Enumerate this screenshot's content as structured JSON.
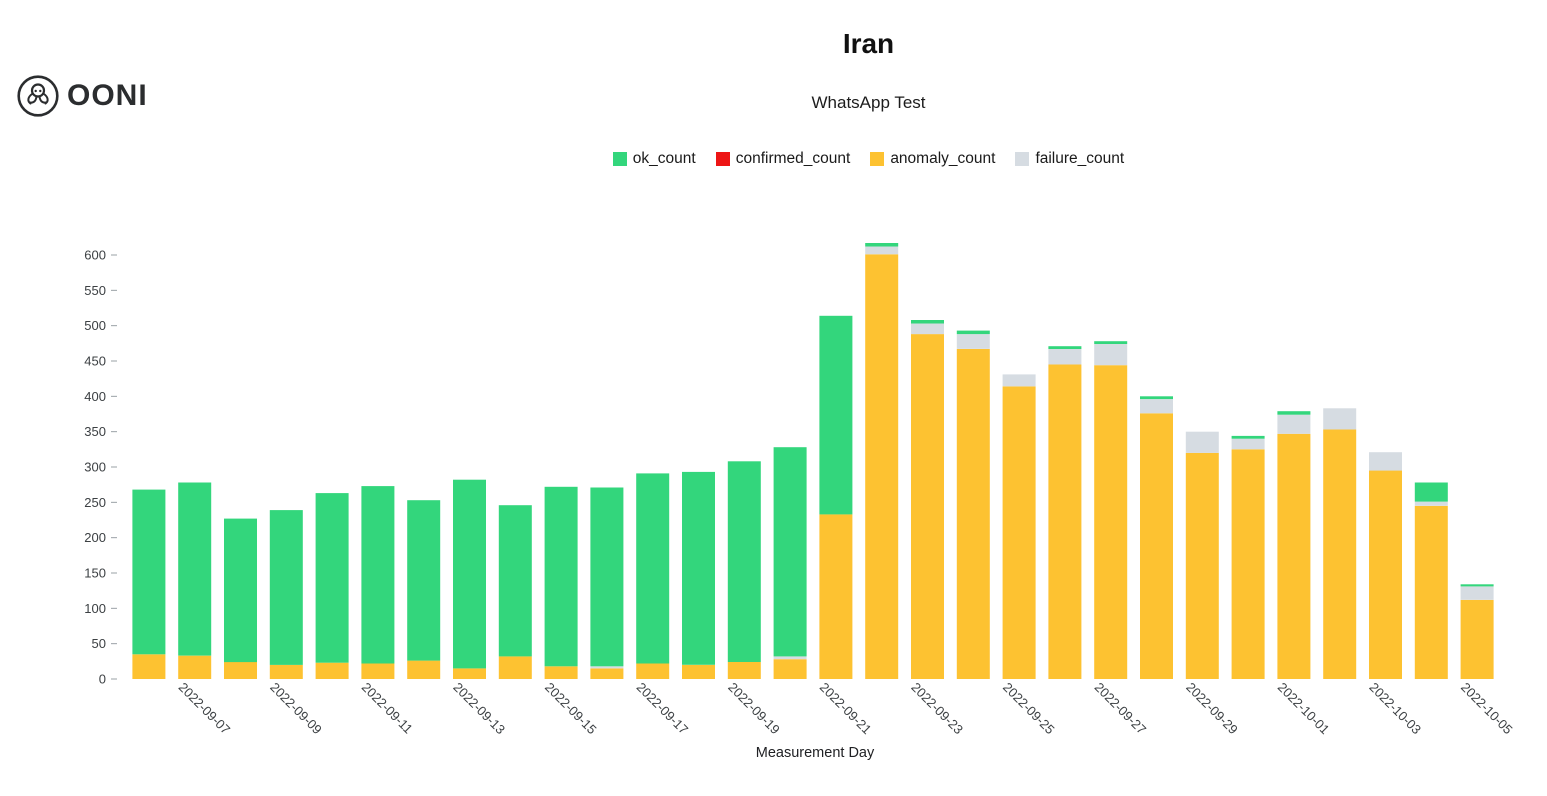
{
  "logo": {
    "text": "OONI"
  },
  "header": {
    "title": "Iran",
    "subtitle": "WhatsApp Test"
  },
  "chart_data": {
    "type": "bar",
    "stacked": true,
    "title": "Iran",
    "subtitle": "WhatsApp Test",
    "xlabel": "Measurement Day",
    "ylabel": "",
    "ylim": [
      0,
      650
    ],
    "ytick_step": 50,
    "ytick_max": 600,
    "grid": false,
    "legend_position": "top",
    "x_tick_every": 2,
    "x_tick_offset": 1,
    "categories": [
      "2022-09-06",
      "2022-09-07",
      "2022-09-08",
      "2022-09-09",
      "2022-09-10",
      "2022-09-11",
      "2022-09-12",
      "2022-09-13",
      "2022-09-14",
      "2022-09-15",
      "2022-09-16",
      "2022-09-17",
      "2022-09-18",
      "2022-09-19",
      "2022-09-20",
      "2022-09-21",
      "2022-09-22",
      "2022-09-23",
      "2022-09-24",
      "2022-09-25",
      "2022-09-26",
      "2022-09-27",
      "2022-09-28",
      "2022-09-29",
      "2022-09-30",
      "2022-10-01",
      "2022-10-02",
      "2022-10-03",
      "2022-10-04",
      "2022-10-05"
    ],
    "series": [
      {
        "name": "ok_count",
        "color": "#33d67c",
        "values": [
          233,
          245,
          203,
          219,
          240,
          251,
          227,
          267,
          214,
          254,
          253,
          269,
          273,
          284,
          296,
          281,
          5,
          5,
          5,
          0,
          4,
          4,
          4,
          0,
          4,
          5,
          0,
          0,
          27,
          3
        ]
      },
      {
        "name": "confirmed_count",
        "color": "#ed1515",
        "values": [
          0,
          0,
          0,
          0,
          0,
          0,
          0,
          0,
          0,
          0,
          0,
          0,
          0,
          0,
          0,
          0,
          0,
          0,
          0,
          0,
          0,
          0,
          0,
          0,
          0,
          0,
          0,
          0,
          0,
          0
        ]
      },
      {
        "name": "anomaly_count",
        "color": "#fdc231",
        "values": [
          35,
          33,
          24,
          20,
          23,
          22,
          26,
          15,
          32,
          18,
          15,
          22,
          20,
          24,
          28,
          233,
          601,
          488,
          467,
          414,
          445,
          444,
          376,
          320,
          325,
          347,
          353,
          295,
          245,
          112
        ]
      },
      {
        "name": "failure_count",
        "color": "#d6dce2",
        "values": [
          0,
          0,
          0,
          0,
          0,
          0,
          0,
          0,
          0,
          0,
          3,
          0,
          0,
          0,
          4,
          0,
          11,
          15,
          21,
          17,
          22,
          30,
          20,
          30,
          15,
          27,
          30,
          26,
          6,
          19
        ]
      }
    ],
    "stack_order": [
      "anomaly_count",
      "confirmed_count",
      "failure_count",
      "ok_count"
    ]
  }
}
